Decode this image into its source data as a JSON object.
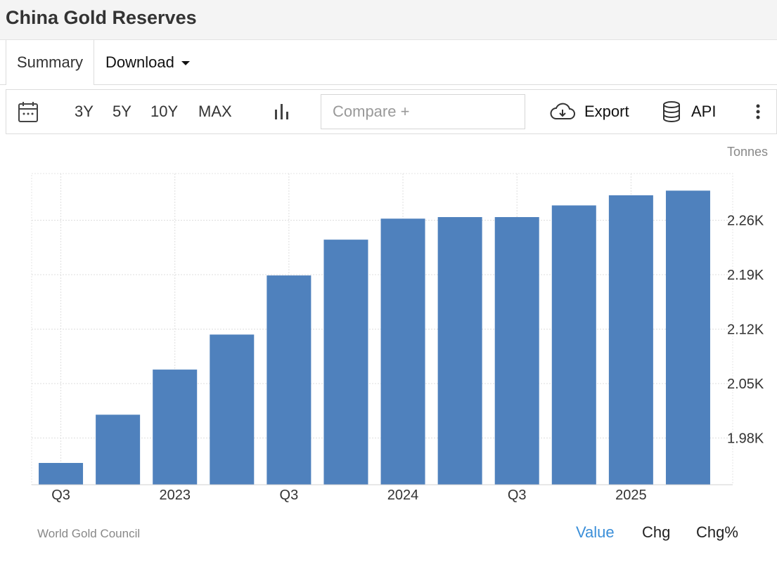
{
  "header": {
    "title": "China Gold Reserves"
  },
  "tabs": {
    "summary": "Summary",
    "download": "Download"
  },
  "toolbar": {
    "ranges": [
      "3Y",
      "5Y",
      "10Y",
      "MAX"
    ],
    "compare_placeholder": "Compare +",
    "export_label": "Export",
    "api_label": "API",
    "icons": [
      "calendar-icon",
      "bar-chart-icon",
      "cloud-download-icon",
      "database-icon",
      "more-vertical-icon"
    ]
  },
  "unit": "Tonnes",
  "footer": {
    "source": "World Gold Council",
    "views": [
      "Value",
      "Chg",
      "Chg%"
    ],
    "active_view": "Value",
    "active_color": "#3b8fd9"
  },
  "chart_data": {
    "type": "bar",
    "title": "",
    "xlabel": "",
    "ylabel": "Tonnes",
    "bar_color": "#4f81bd",
    "categories": [
      "2022 Q3",
      "2022 Q4",
      "2023 Q1",
      "2023 Q2",
      "2023 Q3",
      "2023 Q4",
      "2024 Q1",
      "2024 Q2",
      "2024 Q3",
      "2024 Q4",
      "2025 Q1",
      "2025 Q2"
    ],
    "values": [
      1948,
      2010,
      2068,
      2113,
      2189,
      2235,
      2262,
      2264,
      2264,
      2279,
      2292,
      2298
    ],
    "x_tick_labels": [
      {
        "index": 0,
        "label": "Q3"
      },
      {
        "index": 2,
        "label": "2023"
      },
      {
        "index": 4,
        "label": "Q3"
      },
      {
        "index": 6,
        "label": "2024"
      },
      {
        "index": 8,
        "label": "Q3"
      },
      {
        "index": 10,
        "label": "2025"
      }
    ],
    "y_ticks": [
      1980,
      2050,
      2120,
      2190,
      2260
    ],
    "y_tick_labels": [
      "1.98K",
      "2.05K",
      "2.12K",
      "2.19K",
      "2.26K"
    ],
    "ylim": [
      1920,
      2320
    ],
    "grid": true,
    "y_axis_position": "right"
  }
}
